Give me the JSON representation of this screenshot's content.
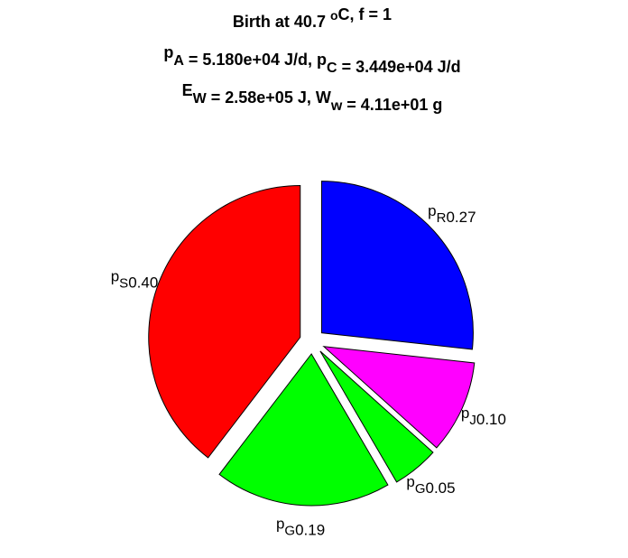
{
  "chart_data": {
    "type": "pie",
    "title": [
      [
        "Birth at 40.7 ",
        {
          "sup": "o"
        },
        "C, f = 1"
      ],
      [
        "p",
        {
          "sub": "A"
        },
        " = 5.180e+04 J/d, p",
        {
          "sub": "C"
        },
        " = 3.449e+04 J/d"
      ],
      [
        "E",
        {
          "sub": "W"
        },
        " = 2.58e+05 J, W",
        {
          "sub": "w"
        },
        " = 4.11e+01 g"
      ]
    ],
    "categories": [
      {
        "base": "p",
        "sub": "R"
      },
      {
        "base": "p",
        "sub": "J"
      },
      {
        "base": "p",
        "sub": "G"
      },
      {
        "base": "p",
        "sub": "G"
      },
      {
        "base": "p",
        "sub": "S"
      }
    ],
    "values": [
      0.27,
      0.1,
      0.05,
      0.19,
      0.4
    ],
    "value_labels": [
      "0.27",
      "0.10",
      "0.05",
      "0.19",
      "0.40"
    ],
    "colors": [
      "#0000ff",
      "#ff00ff",
      "#00ff00",
      "#00ff00",
      "#ff0000"
    ],
    "exploded": true
  }
}
